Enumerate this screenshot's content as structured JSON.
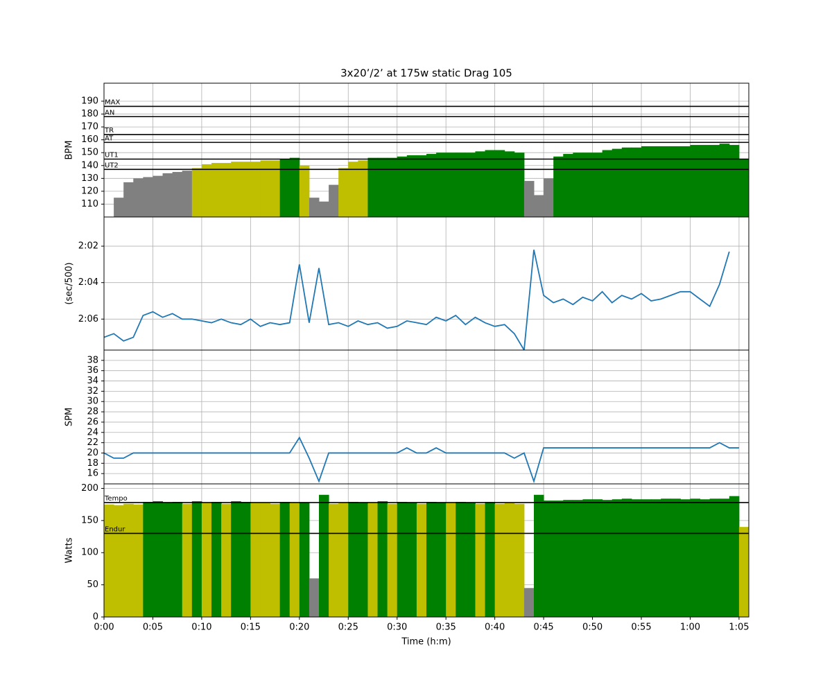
{
  "chart_data": [
    {
      "type": "area",
      "title": "3x20’/2’ at 175w static Drag 105",
      "ylabel": "BPM",
      "grid": true,
      "xlim": [
        0,
        66
      ],
      "ylim": [
        100,
        204
      ],
      "yticks": [
        110,
        120,
        130,
        140,
        150,
        160,
        170,
        180,
        190
      ],
      "color": "#808080",
      "zones": [
        {
          "name": "MAX",
          "value": 186
        },
        {
          "name": "AN",
          "value": 178
        },
        {
          "name": "TR",
          "value": 164
        },
        {
          "name": "AT",
          "value": 158
        },
        {
          "name": "UT1",
          "value": 145,
          "fill": "#008000"
        },
        {
          "name": "UT2",
          "value": 137,
          "fill": "#bfbf00"
        }
      ],
      "x": [
        0,
        1,
        2,
        3,
        4,
        5,
        6,
        7,
        8,
        9,
        10,
        11,
        12,
        13,
        14,
        15,
        16,
        17,
        18,
        19,
        20,
        21,
        22,
        23,
        24,
        25,
        26,
        27,
        28,
        29,
        30,
        31,
        32,
        33,
        34,
        35,
        36,
        37,
        38,
        39,
        40,
        41,
        42,
        43,
        44,
        45,
        46,
        47,
        48,
        49,
        50,
        51,
        52,
        53,
        54,
        55,
        56,
        57,
        58,
        59,
        60,
        61,
        62,
        63,
        64,
        65
      ],
      "values": [
        null,
        115,
        127,
        130,
        131,
        132,
        134,
        135,
        136,
        138,
        141,
        142,
        142,
        143,
        143,
        143,
        144,
        144,
        145,
        146,
        140,
        115,
        112,
        125,
        138,
        143,
        144,
        146,
        146,
        146,
        147,
        148,
        148,
        149,
        150,
        150,
        150,
        150,
        151,
        152,
        152,
        151,
        150,
        128,
        117,
        130,
        147,
        149,
        150,
        150,
        150,
        152,
        153,
        154,
        154,
        155,
        155,
        155,
        155,
        155,
        156,
        156,
        156,
        157,
        156,
        145
      ]
    },
    {
      "type": "line",
      "ylabel": "(sec/500)",
      "grid": true,
      "color": "#1f77b4",
      "xlim": [
        0,
        66
      ],
      "ylim": [
        127.7,
        120.4
      ],
      "yticks": [
        {
          "value": 122,
          "label": "2:02"
        },
        {
          "value": 124,
          "label": "2:04"
        },
        {
          "value": 126,
          "label": "2:06"
        }
      ],
      "x": [
        0,
        1,
        2,
        3,
        4,
        5,
        6,
        7,
        8,
        9,
        10,
        11,
        12,
        13,
        14,
        15,
        16,
        17,
        18,
        19,
        20,
        21,
        22,
        23,
        24,
        25,
        26,
        27,
        28,
        29,
        30,
        31,
        32,
        33,
        34,
        35,
        36,
        37,
        38,
        39,
        40,
        41,
        42,
        43,
        44,
        45,
        46,
        47,
        48,
        49,
        50,
        51,
        52,
        53,
        54,
        55,
        56,
        57,
        58,
        59,
        60,
        61,
        62,
        63,
        64,
        65
      ],
      "values": [
        127,
        126.8,
        127.2,
        127,
        125.8,
        125.6,
        125.9,
        125.7,
        126,
        126,
        126.1,
        126.2,
        126,
        126.2,
        126.3,
        126,
        126.4,
        126.2,
        126.3,
        126.2,
        123,
        126.2,
        123.2,
        126.3,
        126.2,
        126.4,
        126.1,
        126.3,
        126.2,
        126.5,
        126.4,
        126.1,
        126.2,
        126.3,
        125.9,
        126.1,
        125.8,
        126.3,
        125.9,
        126.2,
        126.4,
        126.3,
        126.8,
        127.7,
        122.2,
        124.7,
        125.1,
        124.9,
        125.2,
        124.8,
        125,
        124.5,
        125.1,
        124.7,
        124.9,
        124.6,
        125,
        124.9,
        124.7,
        124.5,
        124.5,
        124.9,
        125.3,
        124.1,
        122.3,
        null
      ]
    },
    {
      "type": "line",
      "ylabel": "SPM",
      "grid": true,
      "color": "#1f77b4",
      "xlim": [
        0,
        66
      ],
      "ylim": [
        14,
        40
      ],
      "yticks": [
        16,
        18,
        20,
        22,
        24,
        26,
        28,
        30,
        32,
        34,
        36,
        38
      ],
      "x": [
        0,
        1,
        2,
        3,
        4,
        5,
        6,
        7,
        8,
        9,
        10,
        11,
        12,
        13,
        14,
        15,
        16,
        17,
        18,
        19,
        20,
        21,
        22,
        23,
        24,
        25,
        26,
        27,
        28,
        29,
        30,
        31,
        32,
        33,
        34,
        35,
        36,
        37,
        38,
        39,
        40,
        41,
        42,
        43,
        44,
        45,
        46,
        47,
        48,
        49,
        50,
        51,
        52,
        53,
        54,
        55,
        56,
        57,
        58,
        59,
        60,
        61,
        62,
        63,
        64,
        65
      ],
      "values": [
        20,
        19,
        19,
        20,
        20,
        20,
        20,
        20,
        20,
        20,
        20,
        20,
        20,
        20,
        20,
        20,
        20,
        20,
        20,
        20,
        23,
        19,
        14.5,
        20,
        20,
        20,
        20,
        20,
        20,
        20,
        20,
        21,
        20,
        20,
        21,
        20,
        20,
        20,
        20,
        20,
        20,
        20,
        19,
        20,
        14.5,
        21,
        21,
        21,
        21,
        21,
        21,
        21,
        21,
        21,
        21,
        21,
        21,
        21,
        21,
        21,
        21,
        21,
        21,
        22,
        21,
        21
      ]
    },
    {
      "type": "area",
      "ylabel": "Watts",
      "xlabel": "Time (h:m)",
      "grid": true,
      "xlim": [
        0,
        66
      ],
      "ylim": [
        0,
        207
      ],
      "yticks": [
        0,
        50,
        100,
        150,
        200
      ],
      "xticks": [
        {
          "value": 0,
          "label": "0:00"
        },
        {
          "value": 5,
          "label": "0:05"
        },
        {
          "value": 10,
          "label": "0:10"
        },
        {
          "value": 15,
          "label": "0:15"
        },
        {
          "value": 20,
          "label": "0:20"
        },
        {
          "value": 25,
          "label": "0:25"
        },
        {
          "value": 30,
          "label": "0:30"
        },
        {
          "value": 35,
          "label": "0:35"
        },
        {
          "value": 40,
          "label": "0:40"
        },
        {
          "value": 45,
          "label": "0:45"
        },
        {
          "value": 50,
          "label": "0:50"
        },
        {
          "value": 55,
          "label": "0:55"
        },
        {
          "value": 60,
          "label": "1:00"
        },
        {
          "value": 65,
          "label": "1:05"
        }
      ],
      "color": "#808080",
      "zones": [
        {
          "name": "Tempo",
          "value": 178,
          "fill": "#008000"
        },
        {
          "name": "Endur",
          "value": 130,
          "fill": "#bfbf00"
        }
      ],
      "x": [
        0,
        1,
        2,
        3,
        4,
        5,
        6,
        7,
        8,
        9,
        10,
        11,
        12,
        13,
        14,
        15,
        16,
        17,
        18,
        19,
        20,
        21,
        22,
        23,
        24,
        25,
        26,
        27,
        28,
        29,
        30,
        31,
        32,
        33,
        34,
        35,
        36,
        37,
        38,
        39,
        40,
        41,
        42,
        43,
        44,
        45,
        46,
        47,
        48,
        49,
        50,
        51,
        52,
        53,
        54,
        55,
        56,
        57,
        58,
        59,
        60,
        61,
        62,
        63,
        64,
        65
      ],
      "values": [
        175,
        174,
        176,
        175,
        179,
        180,
        178,
        179,
        176,
        180,
        177,
        179,
        176,
        180,
        179,
        177,
        177,
        176,
        179,
        177,
        178,
        60,
        190,
        176,
        177,
        179,
        178,
        177,
        180,
        176,
        179,
        178,
        176,
        179,
        178,
        177,
        179,
        178,
        176,
        179,
        176,
        177,
        176,
        45,
        190,
        181,
        181,
        182,
        182,
        183,
        183,
        182,
        183,
        184,
        183,
        183,
        183,
        184,
        184,
        183,
        184,
        183,
        184,
        184,
        188,
        140
      ]
    }
  ]
}
